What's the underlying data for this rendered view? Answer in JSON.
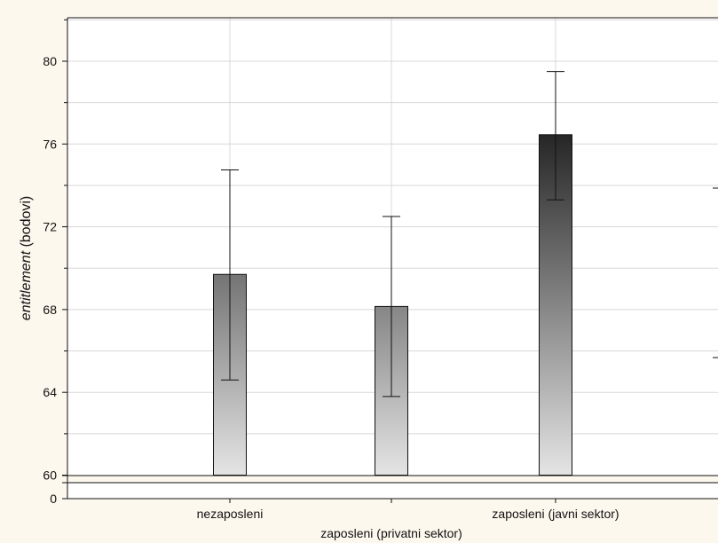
{
  "chart_data": {
    "type": "bar",
    "xlabel": "",
    "ylabel": {
      "italic_part": "entitlement",
      "rest": " (bodovi)"
    },
    "categories": [
      "nezaposleni",
      "zaposleni (privatni sektor)",
      "zaposleni (javni sektor)"
    ],
    "values": [
      69.7,
      68.15,
      76.45
    ],
    "error_low": [
      64.6,
      63.8,
      73.3
    ],
    "error_high": [
      74.75,
      72.5,
      79.5
    ],
    "ylim": [
      60,
      82
    ],
    "yticks": [
      "60",
      "64",
      "68",
      "72",
      "76",
      "80"
    ],
    "axis_break_label": "0",
    "grid": true,
    "colors": {
      "bar_top": "#262626",
      "bar_bottom": "#e2e2e2",
      "background": "#fdf8ee",
      "plot_bg": "#ffffff",
      "grid": "#d8d8d8"
    }
  }
}
